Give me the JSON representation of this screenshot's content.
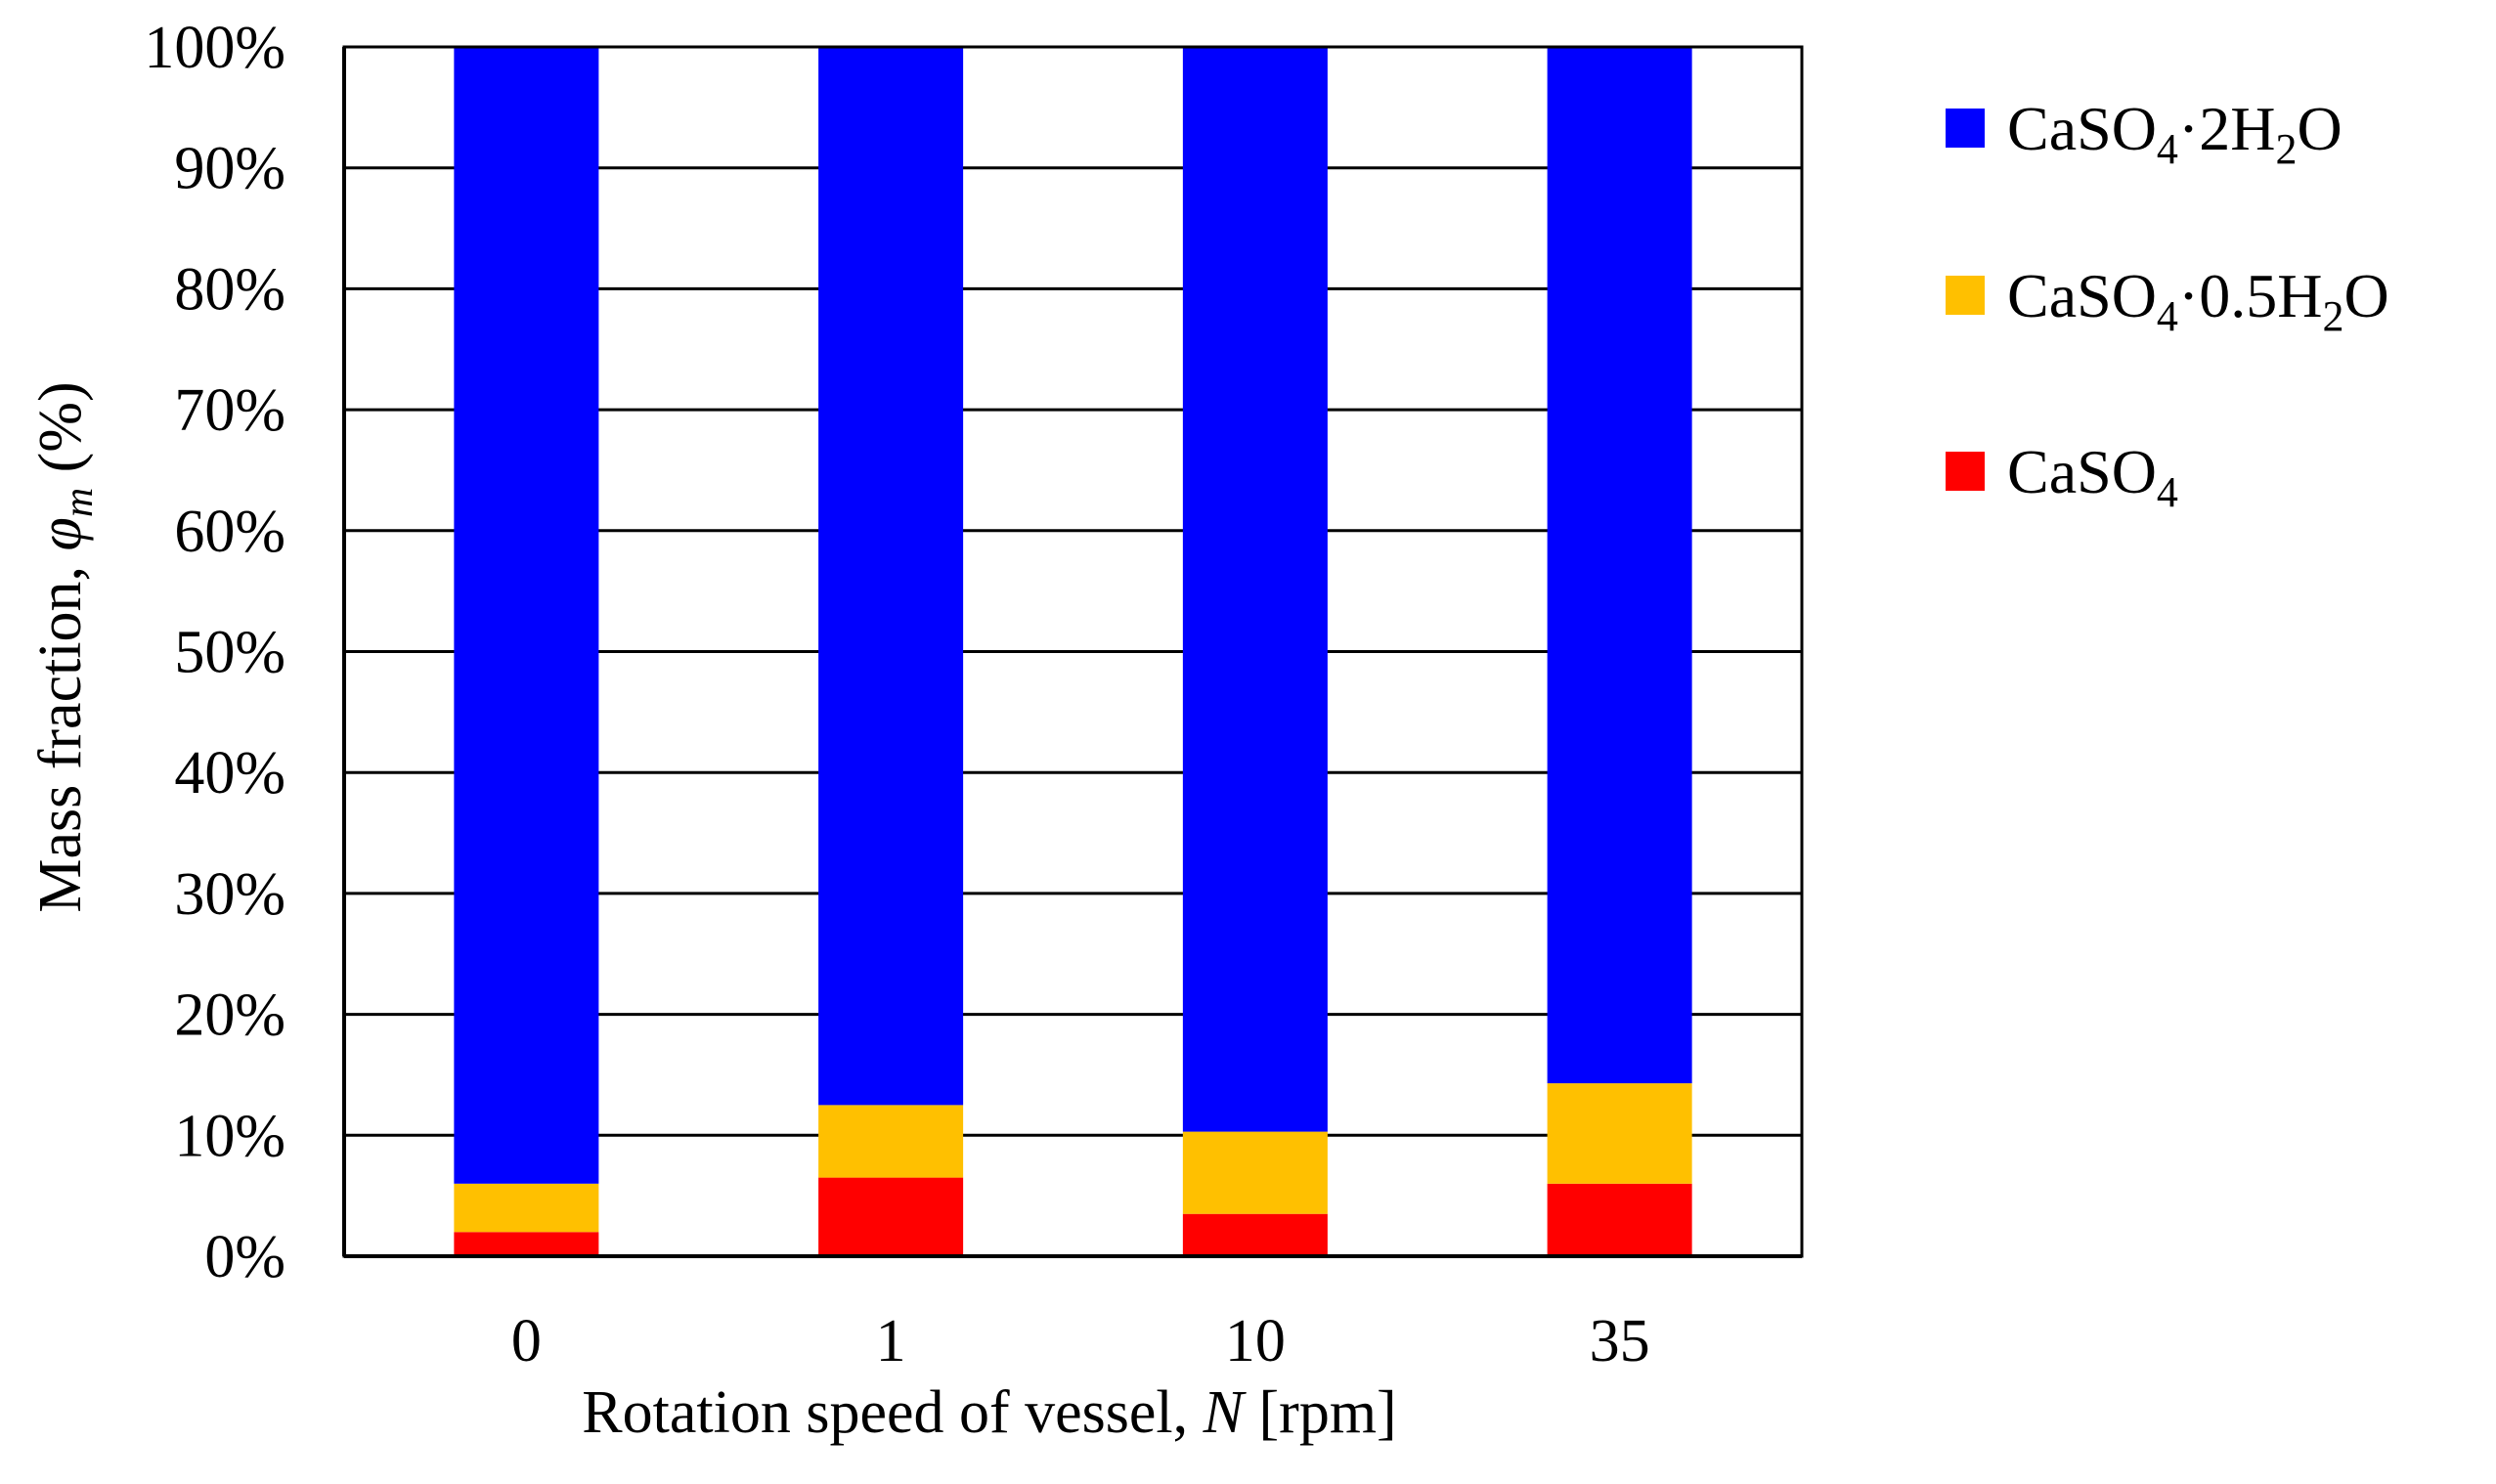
{
  "chart_data": {
    "type": "bar",
    "stacked": true,
    "categories": [
      "0",
      "1",
      "10",
      "35"
    ],
    "series": [
      {
        "name": "CaSO4",
        "legend": {
          "base": "CaSO",
          "sub1": "4",
          "rest": ""
        },
        "color": "#ff0000",
        "values": [
          2,
          6.5,
          3.5,
          6
        ]
      },
      {
        "name": "CaSO4·0.5H2O",
        "legend": {
          "base": "CaSO",
          "sub1": "4",
          "rest": "·0.5H",
          "sub2": "2",
          "tail": "O"
        },
        "color": "#ffc000",
        "values": [
          4,
          6,
          6.8,
          8.3
        ]
      },
      {
        "name": "CaSO4·2H2O",
        "legend": {
          "base": "CaSO",
          "sub1": "4",
          "rest": "·2H",
          "sub2": "2",
          "tail": "O"
        },
        "color": "#0000ff",
        "values": [
          94,
          87.5,
          89.7,
          85.7
        ]
      }
    ],
    "legend_order": [
      "CaSO4·2H2O",
      "CaSO4·0.5H2O",
      "CaSO4"
    ],
    "legend_position": "right",
    "ylim": [
      0,
      100
    ],
    "yticks": [
      0,
      10,
      20,
      30,
      40,
      50,
      60,
      70,
      80,
      90,
      100
    ],
    "ytick_labels": [
      "0%",
      "10%",
      "20%",
      "30%",
      "40%",
      "50%",
      "60%",
      "70%",
      "80%",
      "90%",
      "100%"
    ],
    "grid": true,
    "xlabel": {
      "prefix": "Rotation speed of vessel, ",
      "var": "N",
      "suffix": " [rpm]"
    },
    "ylabel": {
      "prefix": "Mass fraction, ",
      "var": "φ",
      "sub": "m",
      "suffix": " (%)"
    },
    "title": ""
  }
}
